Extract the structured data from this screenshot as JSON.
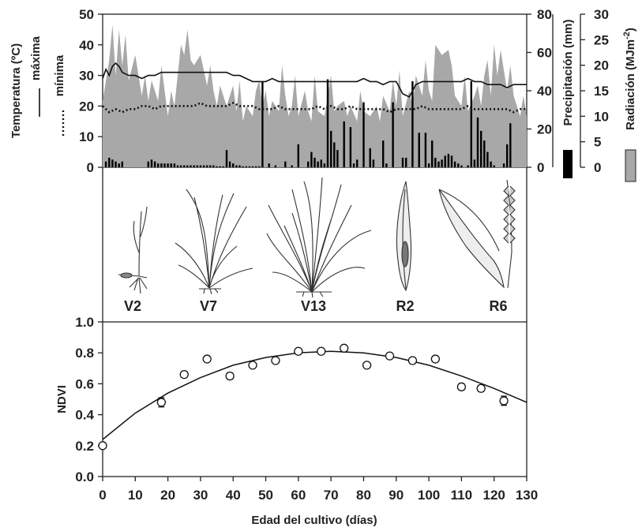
{
  "chart_data": [
    {
      "type": "area",
      "xlim": [
        0,
        130
      ],
      "axes": {
        "left": {
          "ylabel": "Temperatura (ºC)",
          "ylim": [
            0,
            50
          ],
          "ticks": [
            "0",
            "10",
            "20",
            "30",
            "40",
            "50"
          ]
        },
        "right1": {
          "ylabel": "Precipitación (mm)",
          "ylim": [
            0,
            80
          ],
          "ticks": [
            "0",
            "20",
            "40",
            "60",
            "80"
          ]
        },
        "right2": {
          "ylabel": "Radiación (MJm",
          "ylabel_sup": "-2",
          "ylabel_end": ")",
          "ylim": [
            0,
            30
          ],
          "ticks": [
            "0",
            "5",
            "10",
            "15",
            "20",
            "25",
            "30"
          ]
        }
      },
      "legend": {
        "max_label": "máxima",
        "min_label": "mínima"
      },
      "series": [
        {
          "name": "máxima",
          "style": "solid line",
          "color": "#111111",
          "x": [
            0,
            1,
            2,
            3,
            4,
            5,
            6,
            8,
            10,
            12,
            14,
            16,
            18,
            20,
            22,
            24,
            26,
            28,
            30,
            32,
            34,
            36,
            38,
            40,
            42,
            44,
            46,
            48,
            50,
            52,
            54,
            56,
            58,
            60,
            62,
            64,
            66,
            68,
            70,
            72,
            74,
            76,
            78,
            80,
            82,
            84,
            86,
            88,
            90,
            92,
            94,
            96,
            98,
            100,
            102,
            104,
            106,
            108,
            110,
            112,
            114,
            116,
            118,
            120,
            122,
            124,
            126,
            128,
            130
          ],
          "y": [
            29,
            32,
            30,
            33,
            34,
            33,
            31,
            30,
            30,
            29,
            30,
            30,
            31,
            31,
            31,
            31,
            31,
            31,
            31,
            31,
            31,
            31,
            31,
            30,
            30,
            29,
            28,
            28,
            28,
            29,
            28,
            28,
            28,
            28,
            28,
            28,
            28,
            28,
            28,
            28,
            28,
            28,
            28,
            29,
            28,
            28,
            27,
            28,
            28,
            24,
            23,
            27,
            28,
            28,
            28,
            28,
            28,
            28,
            28,
            29,
            28,
            28,
            27,
            27,
            27,
            26,
            27,
            27,
            27
          ]
        },
        {
          "name": "mínima",
          "style": "dotted line",
          "color": "#111111",
          "x": [
            0,
            2,
            4,
            6,
            8,
            10,
            12,
            14,
            16,
            18,
            20,
            22,
            24,
            26,
            28,
            30,
            32,
            34,
            36,
            38,
            40,
            42,
            44,
            46,
            48,
            50,
            52,
            54,
            56,
            58,
            60,
            62,
            64,
            66,
            68,
            70,
            72,
            74,
            76,
            78,
            80,
            82,
            84,
            86,
            88,
            90,
            92,
            94,
            96,
            98,
            100,
            102,
            104,
            106,
            108,
            110,
            112,
            114,
            116,
            118,
            120,
            122,
            124,
            126,
            128,
            130
          ],
          "y": [
            20,
            18,
            19,
            18,
            19,
            19,
            20,
            20,
            19,
            20,
            20,
            20,
            20,
            20,
            20,
            21,
            20,
            20,
            20,
            20,
            21,
            20,
            20,
            20,
            19,
            19,
            19,
            20,
            19,
            19,
            19,
            19,
            19,
            20,
            19,
            20,
            19,
            19,
            20,
            19,
            19,
            19,
            19,
            19,
            18,
            19,
            19,
            19,
            19,
            20,
            19,
            19,
            19,
            19,
            19,
            19,
            20,
            19,
            19,
            19,
            19,
            19,
            19,
            18,
            19,
            19
          ]
        },
        {
          "name": "Radiación",
          "style": "grey area",
          "axis": "right2",
          "color": "#a8a8a8",
          "x": [
            0,
            2,
            3,
            4,
            5,
            6,
            7,
            8,
            10,
            12,
            13,
            14,
            15,
            17,
            18,
            20,
            21,
            22,
            23,
            24,
            25,
            26,
            27,
            28,
            30,
            32,
            33,
            34,
            35,
            36,
            38,
            40,
            41,
            42,
            43,
            44,
            46,
            47,
            48,
            49,
            50,
            51,
            52,
            54,
            55,
            56,
            57,
            58,
            59,
            60,
            62,
            63,
            64,
            65,
            66,
            68,
            69,
            70,
            71,
            72,
            74,
            75,
            76,
            78,
            79,
            80,
            82,
            84,
            85,
            86,
            88,
            89,
            90,
            91,
            92,
            94,
            95,
            96,
            98,
            99,
            100,
            101,
            102,
            104,
            106,
            107,
            108,
            110,
            111,
            112,
            114,
            115,
            116,
            117,
            118,
            119,
            120,
            121,
            122,
            124,
            125,
            126,
            128,
            129,
            130
          ],
          "y": [
            13,
            21,
            28,
            18,
            27,
            20,
            26,
            17,
            22,
            14,
            18,
            13,
            17,
            13,
            20,
            10,
            15,
            12,
            18,
            24,
            22,
            27,
            21,
            20,
            22,
            16,
            20,
            15,
            12,
            16,
            12,
            16,
            11,
            17,
            9,
            12,
            10,
            15,
            17,
            12,
            15,
            10,
            13,
            11,
            20,
            14,
            10,
            12,
            18,
            10,
            15,
            11,
            9,
            18,
            11,
            10,
            14,
            18,
            11,
            12,
            13,
            10,
            12,
            9,
            15,
            11,
            10,
            12,
            9,
            14,
            11,
            17,
            12,
            19,
            10,
            15,
            12,
            18,
            14,
            21,
            15,
            13,
            24,
            22,
            23,
            20,
            14,
            12,
            18,
            11,
            14,
            16,
            12,
            18,
            21,
            14,
            24,
            18,
            23,
            15,
            20,
            14,
            10,
            14,
            10
          ]
        },
        {
          "name": "Precipitación",
          "style": "black bars",
          "axis": "right1",
          "color": "#000000",
          "x": [
            1,
            2,
            3,
            4,
            5,
            6,
            14,
            15,
            16,
            17,
            18,
            19,
            20,
            21,
            22,
            23,
            24,
            25,
            26,
            27,
            28,
            29,
            30,
            31,
            32,
            33,
            34,
            35,
            36,
            37,
            38,
            39,
            40,
            41,
            42,
            43,
            44,
            45,
            46,
            47,
            48,
            49,
            51,
            53,
            56,
            58,
            60,
            63,
            64,
            65,
            66,
            67,
            68,
            69,
            70,
            71,
            72,
            74,
            76,
            77,
            78,
            80,
            82,
            83,
            86,
            87,
            89,
            92,
            93,
            95,
            97,
            99,
            100,
            101,
            102,
            103,
            104,
            105,
            106,
            107,
            108,
            109,
            110,
            112,
            113,
            114,
            115,
            116,
            117,
            118,
            119,
            120,
            123,
            124,
            125
          ],
          "y": [
            3,
            5,
            4,
            3,
            2,
            3,
            3,
            4,
            3,
            2,
            2,
            2,
            2,
            2,
            2,
            1,
            1,
            1,
            1,
            1,
            1,
            1,
            1,
            1,
            1,
            1,
            1,
            0.5,
            0.5,
            0.5,
            9,
            3,
            2,
            1,
            1,
            0.5,
            0.5,
            0.5,
            0.5,
            0.5,
            0.5,
            45,
            2,
            1,
            3,
            1,
            12,
            3,
            8,
            5,
            3,
            4,
            2,
            46,
            19,
            13,
            9,
            24,
            21,
            2,
            4,
            34,
            10,
            4,
            14,
            2,
            34,
            5,
            5,
            45,
            18,
            18,
            2,
            14,
            5,
            3,
            4,
            6,
            7,
            6,
            3,
            2,
            1,
            1,
            45,
            4,
            26,
            19,
            14,
            8,
            3,
            1,
            2,
            12,
            23
          ]
        }
      ],
      "stages": [
        "V2",
        "V7",
        "V13",
        "R2",
        "R6"
      ]
    },
    {
      "type": "scatter",
      "title": "",
      "xlabel": "Edad del cultivo (días)",
      "ylabel": "NDVI",
      "xlim": [
        0,
        130
      ],
      "ylim": [
        0.0,
        1.0
      ],
      "xticks": [
        "0",
        "10",
        "20",
        "30",
        "40",
        "50",
        "60",
        "70",
        "80",
        "90",
        "100",
        "110",
        "120",
        "130"
      ],
      "yticks": [
        "0.0",
        "0.2",
        "0.4",
        "0.6",
        "0.8",
        "1.0"
      ],
      "points": {
        "x": [
          0,
          18,
          25,
          32,
          39,
          46,
          53,
          60,
          67,
          74,
          81,
          88,
          95,
          102,
          110,
          116,
          123
        ],
        "y": [
          0.2,
          0.48,
          0.66,
          0.76,
          0.65,
          0.72,
          0.75,
          0.81,
          0.81,
          0.83,
          0.72,
          0.78,
          0.75,
          0.76,
          0.58,
          0.57,
          0.49
        ],
        "err": [
          0,
          0.03,
          0,
          0,
          0.02,
          0,
          0,
          0,
          0,
          0,
          0,
          0,
          0.02,
          0,
          0.02,
          0.02,
          0.03
        ]
      },
      "fit": {
        "type": "quadratic",
        "x": [
          0,
          10,
          20,
          30,
          40,
          50,
          60,
          70,
          80,
          90,
          100,
          110,
          120,
          130
        ],
        "y": [
          0.24,
          0.41,
          0.54,
          0.64,
          0.72,
          0.77,
          0.8,
          0.81,
          0.8,
          0.77,
          0.72,
          0.65,
          0.57,
          0.48
        ]
      }
    }
  ]
}
